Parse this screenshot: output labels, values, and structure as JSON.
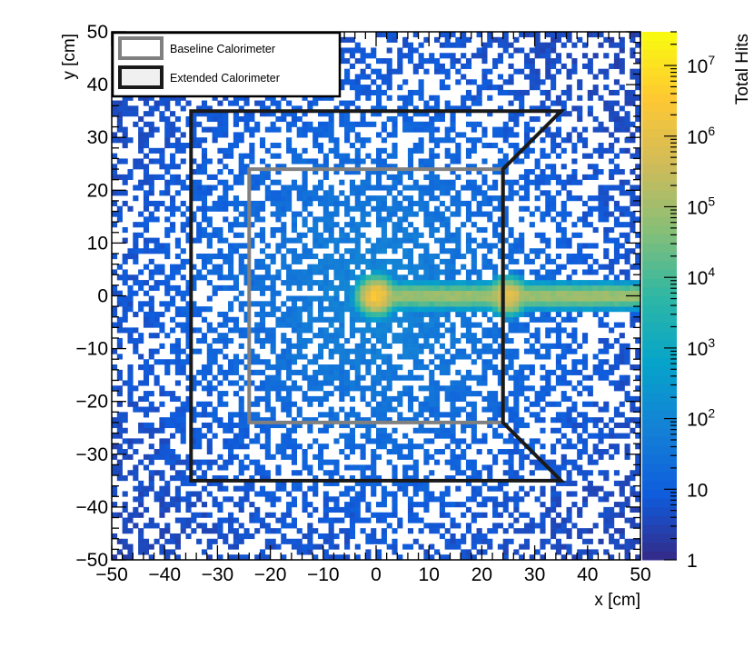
{
  "chart_data": {
    "type": "heatmap",
    "title": "",
    "xlabel": "x [cm]",
    "ylabel": "y [cm]",
    "colorbar_label": "Total Hits",
    "xlim": [
      -50,
      50
    ],
    "ylim": [
      -50,
      50
    ],
    "x_tick_labels": [
      "−50",
      "−40",
      "−30",
      "−20",
      "−10",
      "0",
      "10",
      "20",
      "30",
      "40",
      "50"
    ],
    "y_tick_labels": [
      "−50",
      "−40",
      "−30",
      "−20",
      "−10",
      "0",
      "10",
      "20",
      "30",
      "40",
      "50"
    ],
    "x_ticks": [
      -50,
      -40,
      -30,
      -20,
      -10,
      0,
      10,
      20,
      30,
      40,
      50
    ],
    "y_ticks": [
      -50,
      -40,
      -30,
      -20,
      -10,
      0,
      10,
      20,
      30,
      40,
      50
    ],
    "color_scale": "log",
    "color_range": [
      1,
      30000000
    ],
    "colorbar_ticks": [
      {
        "value": 1,
        "label": "1"
      },
      {
        "value": 10,
        "label": "10"
      },
      {
        "value": 100,
        "label": "10",
        "exp": "2"
      },
      {
        "value": 1000,
        "label": "10",
        "exp": "3"
      },
      {
        "value": 10000,
        "label": "10",
        "exp": "4"
      },
      {
        "value": 100000,
        "label": "10",
        "exp": "5"
      },
      {
        "value": 1000000,
        "label": "10",
        "exp": "6"
      },
      {
        "value": 10000000,
        "label": "10",
        "exp": "7"
      }
    ],
    "palette": [
      "#352a87",
      "#0f5cdd",
      "#1481d6",
      "#06a4ca",
      "#2eb7a4",
      "#87bf77",
      "#d1bb59",
      "#fec832",
      "#f9fb0e"
    ],
    "hotspots": [
      {
        "x": 0,
        "y": 0,
        "peak_hits": 3000000
      },
      {
        "x": 25,
        "y": 0,
        "peak_hits": 1000000
      }
    ],
    "beam_band": {
      "x_from": 0,
      "x_to": 50,
      "y": 0,
      "hits": 100000
    },
    "legend": {
      "position": "top-left",
      "entries": [
        {
          "label": "Baseline Calorimeter",
          "color": "#808080"
        },
        {
          "label": "Extended Calorimeter",
          "color": "#1a1a1a"
        }
      ]
    },
    "outlines": [
      {
        "name": "Baseline Calorimeter",
        "color": "#808080",
        "points": [
          [
            -24,
            24
          ],
          [
            24,
            24
          ],
          [
            24,
            -24
          ],
          [
            -24,
            -24
          ]
        ],
        "closed": true
      },
      {
        "name": "Extended Calorimeter",
        "color": "#1a1a1a",
        "points": [
          [
            35,
            35
          ],
          [
            -35,
            35
          ],
          [
            -35,
            -35
          ],
          [
            35,
            -35
          ],
          [
            24,
            -24
          ],
          [
            24,
            24
          ]
        ],
        "closed": true
      }
    ]
  }
}
